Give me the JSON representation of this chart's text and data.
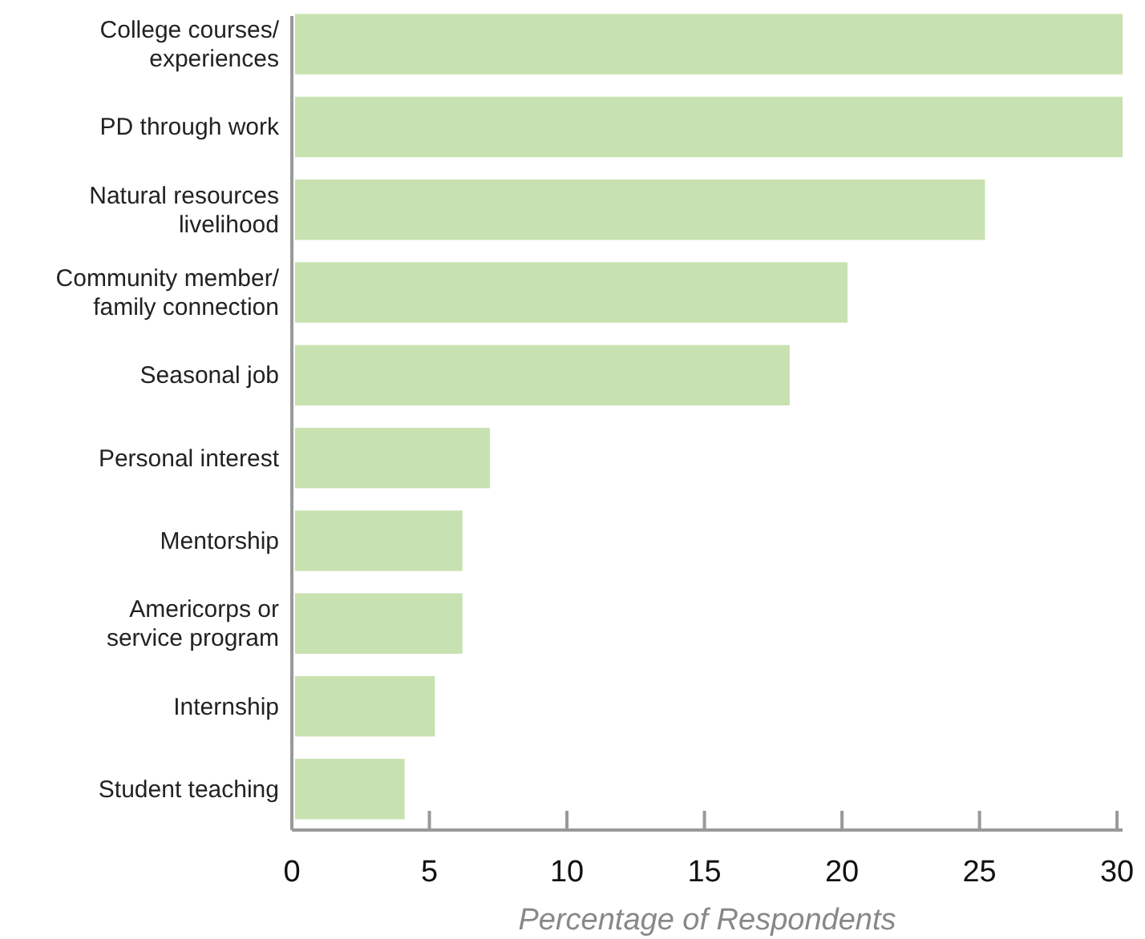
{
  "chart_data": {
    "type": "bar",
    "orientation": "horizontal",
    "xlabel": "Percentage of Respondents",
    "categories": [
      "College courses/\nexperiences",
      "PD through work",
      "Natural resources\nlivelihood",
      "Community member/\nfamily connection",
      "Seasonal job",
      "Personal interest",
      "Mentorship",
      "Americorps or\nservice program",
      "Internship",
      "Student teaching"
    ],
    "values": [
      30.2,
      30.2,
      25.2,
      20.2,
      18.1,
      7.2,
      6.2,
      6.2,
      5.2,
      4.1
    ],
    "color": "#c8e1b0",
    "xlim": [
      0,
      30.2
    ],
    "xticks": [
      0,
      5,
      10,
      15,
      20,
      25,
      30
    ],
    "grid": false
  }
}
